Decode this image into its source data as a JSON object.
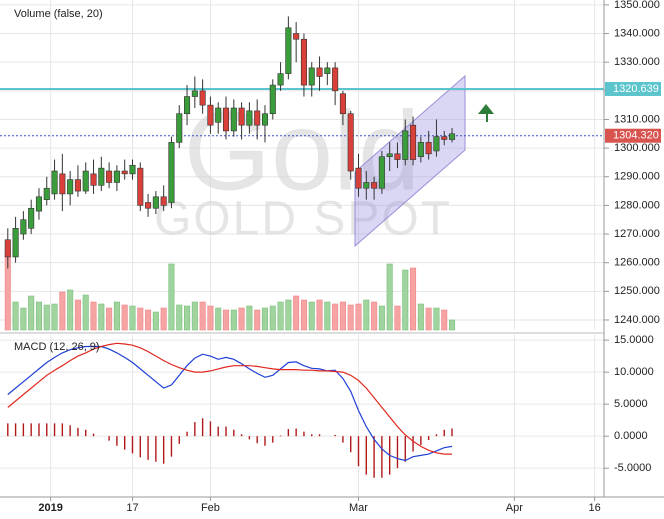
{
  "chart_data": [
    {
      "type": "candlestick",
      "volume_label": "Volume (false, 20)",
      "watermark": [
        "Gold",
        "GOLD SPOT"
      ],
      "up_color": "#3a9c3a",
      "down_color": "#d9403a",
      "volume_up_color": "#9fd49f",
      "volume_down_color": "#f5a3a3",
      "open": [
        1268,
        1262,
        1270,
        1272,
        1278,
        1282,
        1284,
        1291,
        1284,
        1289,
        1285,
        1291,
        1287,
        1292,
        1288,
        1292,
        1291,
        1293,
        1281,
        1279,
        1283,
        1281,
        1302,
        1312,
        1318,
        1320,
        1315,
        1309,
        1314,
        1306,
        1314,
        1308,
        1313,
        1308,
        1312,
        1322,
        1326,
        1340,
        1338,
        1322,
        1328,
        1326,
        1328,
        1319,
        1312,
        1293,
        1286,
        1288,
        1286,
        1297,
        1298,
        1296,
        1308,
        1297,
        1302,
        1299,
        1304,
        1303
      ],
      "high": [
        1272,
        1276,
        1278,
        1282,
        1286,
        1290,
        1296,
        1298,
        1292,
        1294,
        1295,
        1296,
        1297,
        1295,
        1294,
        1296,
        1296,
        1295,
        1284,
        1285,
        1287,
        1304,
        1315,
        1322,
        1325,
        1324,
        1318,
        1316,
        1318,
        1317,
        1316,
        1316,
        1317,
        1315,
        1324,
        1330,
        1346,
        1344,
        1340,
        1330,
        1332,
        1330,
        1330,
        1320,
        1313,
        1298,
        1292,
        1290,
        1299,
        1302,
        1302,
        1310,
        1311,
        1304,
        1306,
        1310,
        1306,
        1307
      ],
      "low": [
        1258,
        1260,
        1268,
        1270,
        1275,
        1280,
        1282,
        1278,
        1280,
        1283,
        1284,
        1284,
        1285,
        1286,
        1285,
        1289,
        1289,
        1278,
        1276,
        1277,
        1278,
        1279,
        1300,
        1308,
        1314,
        1312,
        1305,
        1305,
        1303,
        1304,
        1303,
        1305,
        1303,
        1302,
        1310,
        1320,
        1324,
        1330,
        1318,
        1318,
        1320,
        1322,
        1315,
        1308,
        1289,
        1283,
        1282,
        1282,
        1284,
        1292,
        1293,
        1294,
        1294,
        1295,
        1296,
        1297,
        1301,
        1302
      ],
      "close": [
        1262,
        1272,
        1275,
        1279,
        1283,
        1286,
        1292,
        1284,
        1289,
        1285,
        1292,
        1287,
        1293,
        1288,
        1292,
        1291,
        1294,
        1280,
        1279,
        1283,
        1280,
        1302,
        1312,
        1318,
        1320,
        1315,
        1308,
        1314,
        1306,
        1314,
        1308,
        1313,
        1308,
        1312,
        1322,
        1326,
        1342,
        1338,
        1322,
        1328,
        1325,
        1328,
        1320,
        1312,
        1292,
        1286,
        1288,
        1286,
        1297,
        1298,
        1296,
        1306,
        1296,
        1302,
        1298,
        1304,
        1303,
        1305
      ],
      "volume": [
        80,
        28,
        22,
        34,
        28,
        25,
        26,
        38,
        40,
        30,
        35,
        28,
        26,
        22,
        28,
        25,
        24,
        22,
        20,
        18,
        22,
        66,
        25,
        24,
        28,
        28,
        24,
        22,
        20,
        20,
        22,
        24,
        20,
        22,
        24,
        28,
        30,
        34,
        30,
        28,
        30,
        28,
        26,
        28,
        25,
        26,
        30,
        28,
        24,
        66,
        24,
        60,
        62,
        26,
        22,
        22,
        20,
        10
      ],
      "levels": [
        {
          "value": 1320.639,
          "label": "1320.639",
          "color": "#5bc4cc"
        },
        {
          "value": 1304.32,
          "label": "1304.320",
          "color": "#d9534f"
        }
      ],
      "xlim": [
        -1,
        76.5
      ],
      "xticks": [
        {
          "value": 5.5,
          "label": "2019"
        },
        {
          "value": 16,
          "label": "17"
        },
        {
          "value": 26,
          "label": "Feb"
        },
        {
          "value": 45,
          "label": "Mar"
        },
        {
          "value": 65,
          "label": "Apr"
        },
        {
          "value": 75.3,
          "label": "16"
        }
      ],
      "ylim": [
        1236.5,
        1351.7
      ],
      "yticks": [
        {
          "value": 1240,
          "label": "1240.000"
        },
        {
          "value": 1250,
          "label": "1250.000"
        },
        {
          "value": 1260,
          "label": "1260.000"
        },
        {
          "value": 1270,
          "label": "1270.000"
        },
        {
          "value": 1280,
          "label": "1280.000"
        },
        {
          "value": 1290,
          "label": "1290.000"
        },
        {
          "value": 1300,
          "label": "1300.000"
        },
        {
          "value": 1310,
          "label": "1310.000"
        },
        {
          "value": 1320,
          "label": "1320.000"
        },
        {
          "value": 1330,
          "label": "1330.000"
        },
        {
          "value": 1340,
          "label": "1340.000"
        },
        {
          "value": 1350,
          "label": "1350.000"
        }
      ],
      "grid": true
    },
    {
      "type": "macd",
      "title": "MACD (12, 26, 9)",
      "series": [
        {
          "color": "#1f3fd6",
          "values": [
            6.5,
            7.5,
            8.5,
            9.5,
            10.5,
            11.5,
            12.3,
            13,
            13.5,
            13.8,
            14,
            14,
            14,
            13.6,
            13,
            12.3,
            11.5,
            10.5,
            9.5,
            8.5,
            7.5,
            8,
            9.5,
            11,
            12.2,
            12.8,
            12.5,
            12,
            12.3,
            12,
            11.3,
            10.5,
            9.8,
            9.2,
            9.5,
            10.5,
            11.5,
            11.6,
            11,
            10.6,
            10.5,
            10.2,
            10.3,
            9,
            7,
            4,
            1.5,
            -0.5,
            -2,
            -3,
            -3.5,
            -3.8,
            -3.2,
            -3,
            -2.8,
            -2.3,
            -1.8,
            -1.6
          ]
        },
        {
          "color": "#e0271e",
          "values": [
            4.5,
            5.5,
            6.5,
            7.5,
            8.5,
            9.5,
            10.3,
            11,
            11.8,
            12.5,
            13,
            13.6,
            14,
            14.3,
            14.5,
            14.4,
            14.2,
            13.8,
            13.2,
            12.5,
            11.8,
            11.2,
            10.7,
            10.3,
            10,
            10,
            10.2,
            10.5,
            10.8,
            11,
            11,
            11,
            10.9,
            10.7,
            10.5,
            10.4,
            10.4,
            10.4,
            10.3,
            10.3,
            10.2,
            10.2,
            10.1,
            10,
            9.5,
            8.7,
            7.5,
            6,
            4.5,
            3,
            1.5,
            0.2,
            -0.8,
            -1.6,
            -2.2,
            -2.6,
            -2.8,
            -2.8
          ]
        }
      ],
      "histogram": {
        "color": "#b01818",
        "values": [
          2,
          2,
          2,
          2,
          2,
          2,
          2,
          2,
          1.7,
          1.3,
          1,
          0.4,
          0,
          -0.7,
          -1.5,
          -2.1,
          -2.7,
          -3.3,
          -3.7,
          -4,
          -4.3,
          -3.2,
          -1.2,
          0.7,
          2.2,
          2.8,
          2.3,
          1.5,
          1.5,
          1,
          0.3,
          -0.5,
          -1.1,
          -1.5,
          -1,
          0.1,
          1.1,
          1.2,
          0.7,
          0.3,
          0.3,
          0,
          0.2,
          -1,
          -2.5,
          -4.7,
          -6,
          -6.5,
          -6.5,
          -6,
          -5,
          -4,
          -2.4,
          -1.4,
          -0.6,
          0.3,
          1,
          1.2
        ]
      },
      "ylim": [
        -9.5,
        15.8
      ],
      "yticks": [
        {
          "value": 15,
          "label": "15.0000"
        },
        {
          "value": 10,
          "label": "10.0000"
        },
        {
          "value": 5,
          "label": "5.0000"
        },
        {
          "value": 0,
          "label": "0.0000"
        },
        {
          "value": -5,
          "label": "-5.0000"
        }
      ],
      "grid": true
    }
  ]
}
